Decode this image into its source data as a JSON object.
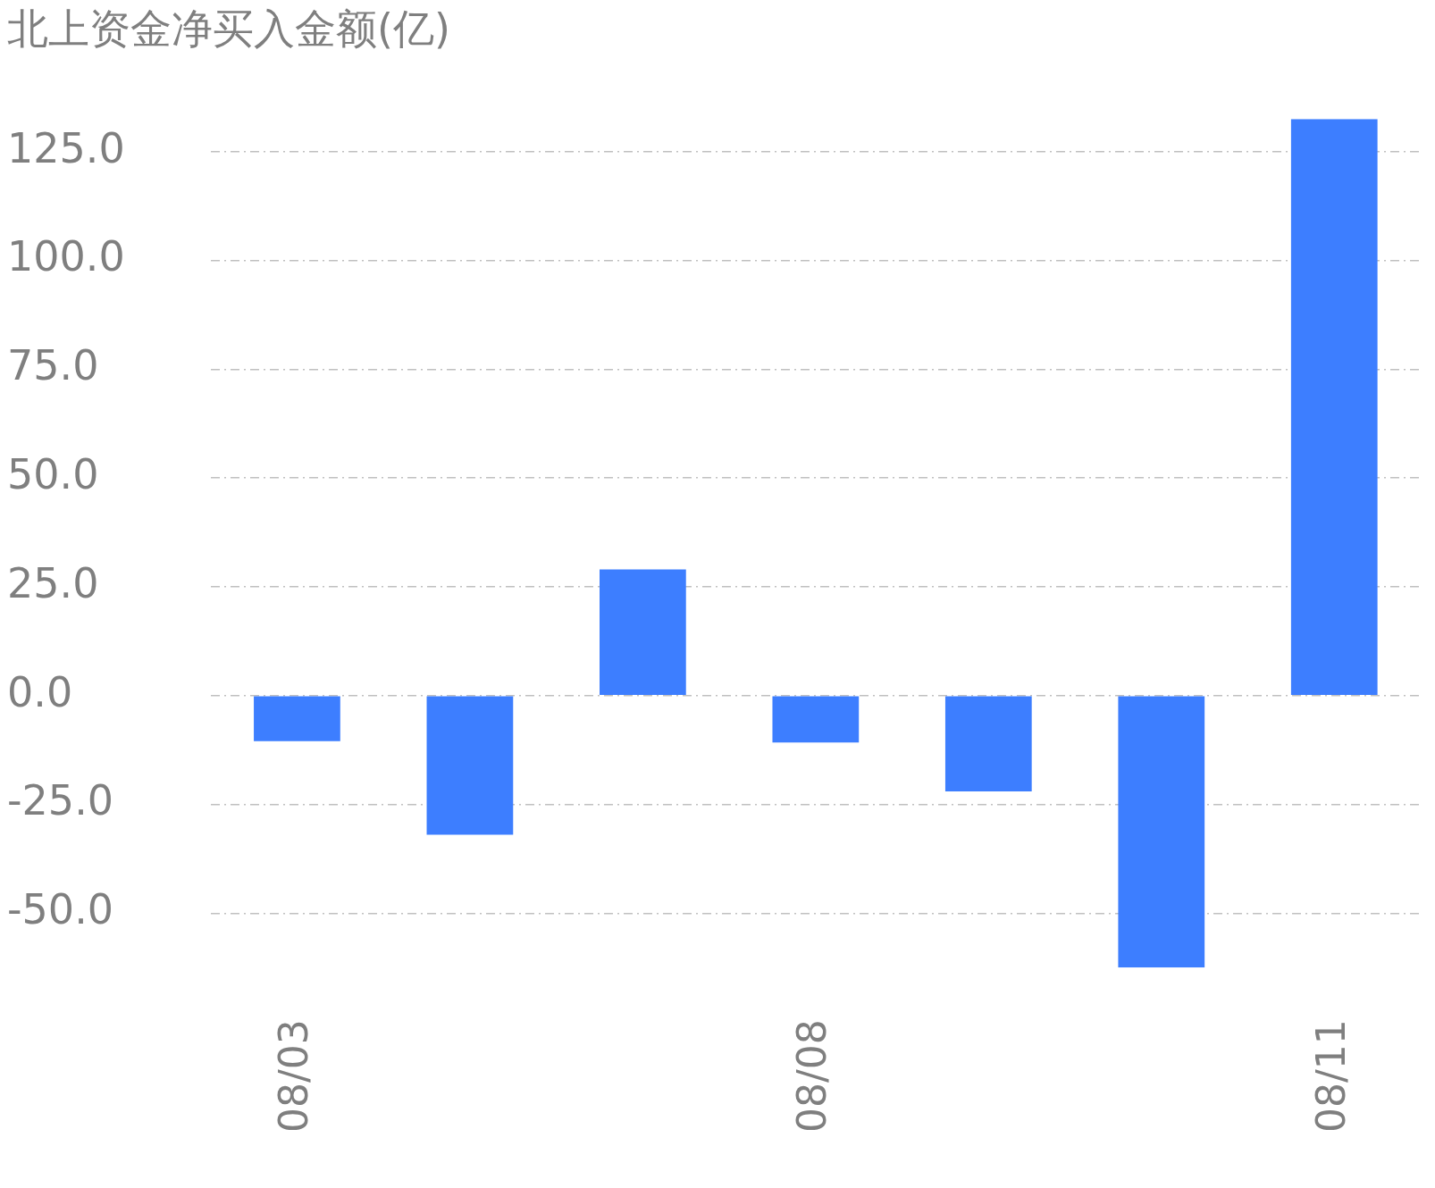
{
  "chart_data": {
    "type": "bar",
    "title": "北上资金净买入金额(亿)",
    "categories": [
      "08/03",
      null,
      null,
      "08/08",
      null,
      null,
      "08/11"
    ],
    "series": [
      {
        "color": "#3d7eff",
        "values": [
          -10.5,
          -32,
          29,
          -10.8,
          -22,
          -62.5,
          132.5
        ]
      }
    ],
    "ylim": [
      -62.5,
      132.5
    ],
    "yticks": [
      {
        "value": -50,
        "label": "-50.0"
      },
      {
        "value": -25,
        "label": "-25.0"
      },
      {
        "value": 0,
        "label": "0.0"
      },
      {
        "value": 25,
        "label": "25.0"
      },
      {
        "value": 50,
        "label": "50.0"
      },
      {
        "value": 75,
        "label": "75.0"
      },
      {
        "value": 100,
        "label": "100.0"
      },
      {
        "value": 125,
        "label": "125.0"
      }
    ],
    "grid": "y",
    "legend": false
  }
}
